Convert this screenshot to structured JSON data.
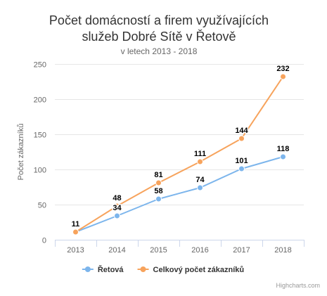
{
  "chart_data": {
    "type": "line",
    "title_lines": [
      "Počet domácností a firem využívajících",
      "služeb Dobré Sítě v Řetově"
    ],
    "subtitle": "v letech 2013 - 2018",
    "xlabel": "",
    "ylabel": "Počet zákazníků",
    "categories": [
      "2013",
      "2014",
      "2015",
      "2016",
      "2017",
      "2018"
    ],
    "ylim": [
      0,
      250
    ],
    "yticks": [
      0,
      50,
      100,
      150,
      200,
      250
    ],
    "grid": true,
    "legend_position": "bottom-center",
    "series": [
      {
        "name": "Řetová",
        "color": "#7cb5ec",
        "values": [
          11,
          34,
          58,
          74,
          101,
          118
        ]
      },
      {
        "name": "Celkový počet zákazníků",
        "color": "#f7a35c",
        "values": [
          11,
          48,
          81,
          111,
          144,
          232
        ]
      }
    ],
    "credits": "Highcharts.com"
  }
}
